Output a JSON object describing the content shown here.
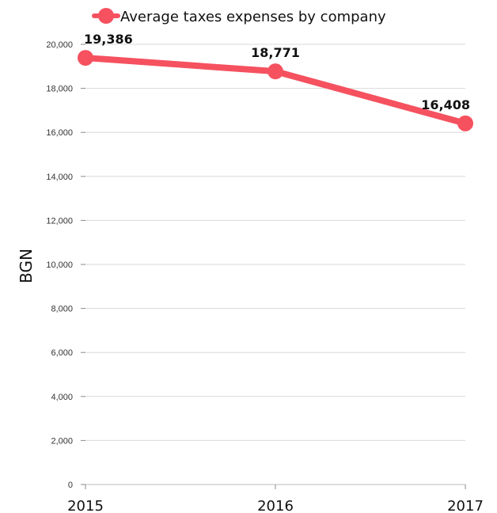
{
  "chart_data": {
    "type": "line",
    "ylabel": "BGN",
    "x": [
      "2015",
      "2016",
      "2017"
    ],
    "series": [
      {
        "name": "Average taxes expenses by company",
        "values": [
          19386,
          18771,
          16408
        ],
        "data_labels": [
          "19,386",
          "18,771",
          "16,408"
        ],
        "color": "#f5515f"
      }
    ],
    "ylim": [
      0,
      20000
    ],
    "yticks": [
      0,
      2000,
      4000,
      6000,
      8000,
      10000,
      12000,
      14000,
      16000,
      18000,
      20000
    ],
    "ytick_labels": [
      "0",
      "2,000",
      "4,000",
      "6,000",
      "8,000",
      "10,000",
      "12,000",
      "14,000",
      "16,000",
      "18,000",
      "20,000"
    ],
    "grid": true,
    "legend_position": "top"
  }
}
